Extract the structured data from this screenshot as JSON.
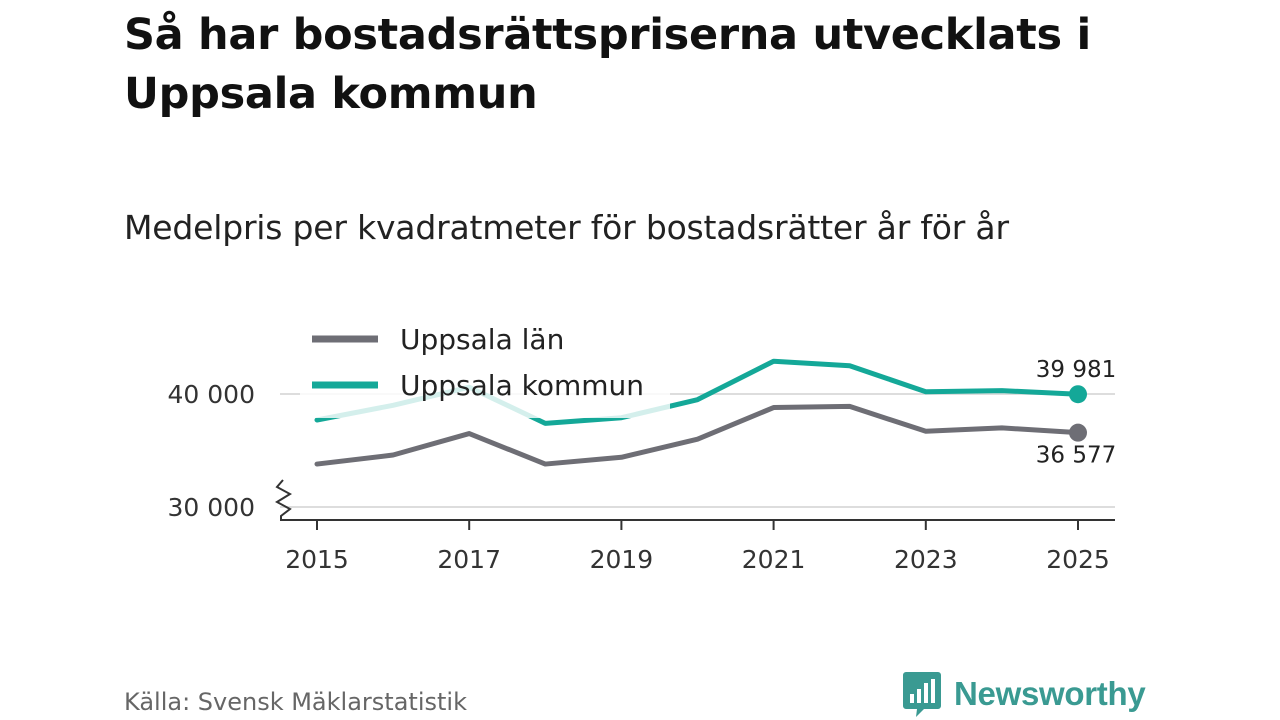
{
  "title": "Så har bostadsrättspriserna utvecklats i Uppsala kommun",
  "subtitle": "Medelpris per kvadratmeter för bostadsrätter år för år",
  "source": "Källa: Svensk Mäklarstatistik",
  "brand": "Newsworthy",
  "colors": {
    "lan": "#6e6e75",
    "kommun": "#14a898",
    "grid": "#dddddd",
    "axis": "#333333",
    "brand": "#3a9a92"
  },
  "chart_data": {
    "type": "line",
    "title": "Så har bostadsrättspriserna utvecklats i Uppsala kommun",
    "subtitle": "Medelpris per kvadratmeter för bostadsrätter år för år",
    "x": [
      2015,
      2016,
      2017,
      2018,
      2019,
      2020,
      2021,
      2022,
      2023,
      2024,
      2025
    ],
    "x_ticks": [
      2015,
      2017,
      2019,
      2021,
      2023,
      2025
    ],
    "x_tick_labels": [
      "2015",
      "2017",
      "2019",
      "2021",
      "2023",
      "2025"
    ],
    "ylim": [
      28500,
      45000
    ],
    "y_ticks": [
      30000,
      40000
    ],
    "y_tick_labels": [
      "30 000",
      "40 000"
    ],
    "y_axis_break": true,
    "legend_position": "top-left",
    "series": [
      {
        "name": "Uppsala län",
        "key": "lan",
        "values": [
          33800,
          34600,
          36500,
          33800,
          34400,
          36000,
          38800,
          38900,
          36700,
          37000,
          36577
        ],
        "end_label": "36 577"
      },
      {
        "name": "Uppsala kommun",
        "key": "kommun",
        "values": [
          37700,
          39000,
          40600,
          37400,
          37900,
          39500,
          42900,
          42500,
          40200,
          40300,
          39981
        ],
        "end_label": "39 981"
      }
    ]
  }
}
